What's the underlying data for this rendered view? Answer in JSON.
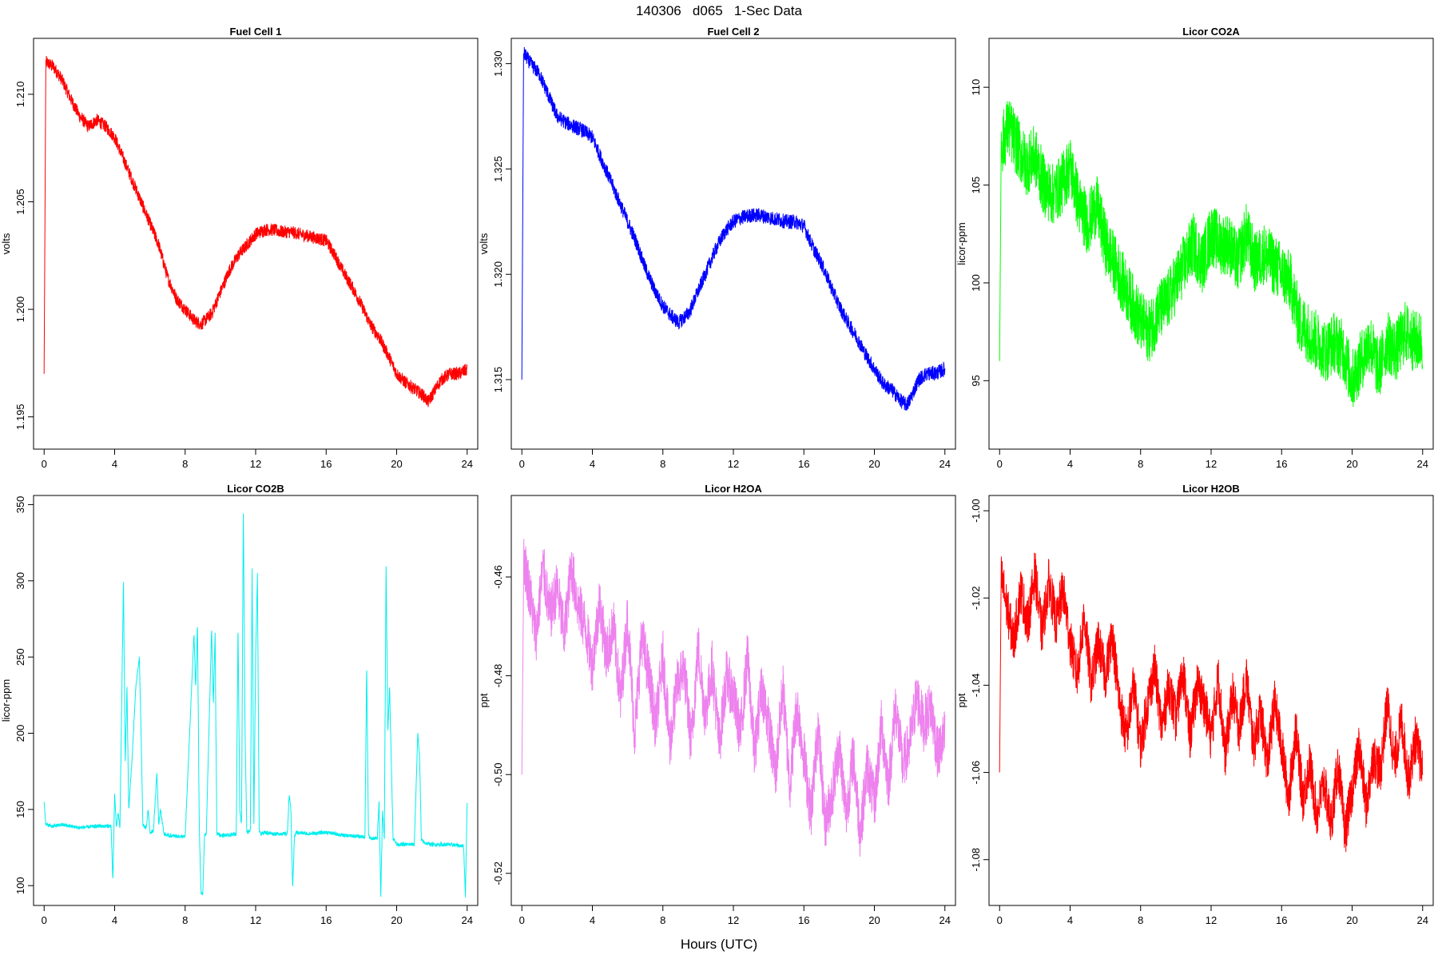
{
  "title": "140306   d065   1-Sec Data",
  "xlabel": "Hours (UTC)",
  "chart_data": [
    {
      "type": "line",
      "title": "Fuel Cell 1",
      "ylabel": "volts",
      "color": "#ff0000",
      "xlim": [
        -0.6,
        24.6
      ],
      "ylim": [
        1.1935,
        1.2126
      ],
      "x_ticks": [
        0,
        4,
        8,
        12,
        16,
        20,
        24
      ],
      "y_ticks": [
        1.195,
        1.2,
        1.205,
        1.21
      ],
      "y_tick_labels": [
        "1.195",
        "1.200",
        "1.205",
        "1.210"
      ],
      "noise": 0.0003,
      "series": [
        {
          "x": [
            0,
            0.1,
            0.5,
            1,
            1.5,
            2,
            2.5,
            3,
            3.5,
            4,
            4.5,
            5,
            5.5,
            6,
            6.5,
            7,
            7.5,
            8,
            8.5,
            8.9,
            9.5,
            10,
            10.5,
            11,
            11.5,
            12,
            12.5,
            13,
            13.5,
            14,
            14.5,
            15,
            15.5,
            16,
            16.5,
            17,
            17.5,
            18,
            18.5,
            19,
            19.5,
            20,
            20.5,
            21,
            21.5,
            21.8,
            22,
            22.5,
            23,
            23.5,
            24
          ],
          "y": [
            1.197,
            1.2115,
            1.2113,
            1.2107,
            1.2098,
            1.209,
            1.2085,
            1.2088,
            1.2085,
            1.208,
            1.207,
            1.206,
            1.205,
            1.204,
            1.203,
            1.2015,
            1.2005,
            1.2,
            1.1995,
            1.1993,
            1.1998,
            1.2008,
            1.2018,
            1.2025,
            1.203,
            1.2035,
            1.2037,
            1.2037,
            1.2036,
            1.2036,
            1.2035,
            1.2034,
            1.2033,
            1.2032,
            1.2025,
            1.2017,
            1.201,
            1.2002,
            1.1993,
            1.1987,
            1.1979,
            1.197,
            1.1966,
            1.1963,
            1.196,
            1.1957,
            1.196,
            1.1967,
            1.197,
            1.197,
            1.1972
          ]
        }
      ]
    },
    {
      "type": "line",
      "title": "Fuel Cell 2",
      "ylabel": "volts",
      "color": "#0000ff",
      "xlim": [
        -0.6,
        24.6
      ],
      "ylim": [
        1.3117,
        1.3312
      ],
      "x_ticks": [
        0,
        4,
        8,
        12,
        16,
        20,
        24
      ],
      "y_ticks": [
        1.315,
        1.32,
        1.325,
        1.33
      ],
      "y_tick_labels": [
        "1.315",
        "1.320",
        "1.325",
        "1.330"
      ],
      "noise": 0.00035,
      "series": [
        {
          "x": [
            0,
            0.1,
            0.5,
            1,
            1.5,
            2,
            2.5,
            3,
            3.5,
            4,
            4.5,
            5,
            5.5,
            6,
            6.5,
            7,
            7.5,
            8,
            8.5,
            8.9,
            9.5,
            10,
            10.5,
            11,
            11.5,
            12,
            12.5,
            13,
            13.5,
            14,
            14.5,
            15,
            15.5,
            16,
            16.5,
            17,
            17.5,
            18,
            18.5,
            19,
            19.5,
            20,
            20.5,
            21,
            21.5,
            21.8,
            22,
            22.5,
            23,
            23.5,
            24
          ],
          "y": [
            1.315,
            1.3305,
            1.33,
            1.3295,
            1.3285,
            1.3275,
            1.3272,
            1.327,
            1.3268,
            1.3265,
            1.3255,
            1.3245,
            1.3235,
            1.3225,
            1.3215,
            1.3203,
            1.3193,
            1.3185,
            1.318,
            1.3177,
            1.3182,
            1.3192,
            1.3202,
            1.3212,
            1.322,
            1.3225,
            1.3227,
            1.3228,
            1.3228,
            1.3227,
            1.3226,
            1.3225,
            1.3225,
            1.3223,
            1.3213,
            1.3205,
            1.3195,
            1.3185,
            1.3177,
            1.317,
            1.3162,
            1.3155,
            1.3148,
            1.3145,
            1.314,
            1.3138,
            1.314,
            1.315,
            1.3153,
            1.3153,
            1.3155
          ]
        }
      ]
    },
    {
      "type": "line",
      "title": "Licor CO2A",
      "ylabel": "licor-ppm",
      "color": "#00ff00",
      "xlim": [
        -0.6,
        24.6
      ],
      "ylim": [
        91.5,
        112.5
      ],
      "x_ticks": [
        0,
        4,
        8,
        12,
        16,
        20,
        24
      ],
      "y_ticks": [
        95,
        100,
        105,
        110
      ],
      "y_tick_labels": [
        "95",
        "100",
        "105",
        "110"
      ],
      "noise": 1.6,
      "series": [
        {
          "x": [
            0,
            0.1,
            0.5,
            1,
            1.5,
            2,
            2.5,
            3,
            3.5,
            4,
            4.5,
            5,
            5.5,
            6,
            6.5,
            7,
            7.5,
            8,
            8.5,
            9,
            9.5,
            10,
            10.5,
            11,
            11.5,
            12,
            12.5,
            13,
            13.5,
            14,
            14.5,
            15,
            15.5,
            16,
            16.5,
            17,
            17.5,
            18,
            18.5,
            19,
            19.5,
            20,
            20.5,
            21,
            21.5,
            22,
            22.5,
            23,
            23.5,
            24
          ],
          "y": [
            96,
            107,
            108,
            107,
            106,
            106.5,
            105,
            104.5,
            105,
            106,
            104,
            103,
            104,
            102,
            101,
            100,
            99,
            98,
            97.5,
            98.5,
            99,
            100,
            101,
            102,
            101,
            102.5,
            102,
            102,
            101,
            102.5,
            101,
            101.5,
            101,
            100.5,
            100,
            98,
            97.5,
            97,
            96.5,
            97,
            96.5,
            95,
            96,
            97,
            95.5,
            97,
            96.5,
            97.5,
            97,
            97
          ]
        }
      ]
    },
    {
      "type": "line",
      "title": "Licor CO2B",
      "ylabel": "licor-ppm",
      "color": "#00eeee",
      "xlim": [
        -0.6,
        24.6
      ],
      "ylim": [
        87,
        356
      ],
      "x_ticks": [
        0,
        4,
        8,
        12,
        16,
        20,
        24
      ],
      "y_ticks": [
        100,
        150,
        200,
        250,
        300,
        350
      ],
      "y_tick_labels": [
        "100",
        "150",
        "200",
        "250",
        "300",
        "350"
      ],
      "noise": 1.2,
      "series": [
        {
          "x": [
            0,
            0.1,
            0.5,
            1,
            2,
            3,
            3.8,
            3.9,
            4.0,
            4.1,
            4.2,
            4.3,
            4.5,
            4.6,
            4.7,
            4.8,
            5.0,
            5.2,
            5.4,
            5.5,
            5.6,
            5.8,
            5.9,
            6.0,
            6.2,
            6.4,
            6.5,
            6.6,
            6.8,
            7,
            8,
            8.5,
            8.6,
            8.7,
            8.8,
            8.9,
            9.0,
            9.1,
            9.2,
            9.5,
            9.6,
            9.7,
            9.8,
            9.9,
            10,
            10.5,
            10.9,
            11.0,
            11.1,
            11.2,
            11.3,
            11.4,
            11.5,
            11.7,
            11.8,
            11.9,
            12.0,
            12.1,
            12.2,
            12.3,
            12.5,
            13,
            13.8,
            13.9,
            14.0,
            14.1,
            14.2,
            14.3,
            15,
            16,
            17,
            18.2,
            18.3,
            18.4,
            18.5,
            18.9,
            19.0,
            19.1,
            19.2,
            19.3,
            19.4,
            19.5,
            19.6,
            19.8,
            19.9,
            20.0,
            20.5,
            21.0,
            21.2,
            21.3,
            21.4,
            21.6,
            22,
            23,
            23.8,
            23.9,
            24.0
          ],
          "y": [
            155,
            140,
            139,
            140,
            138,
            139,
            139,
            102,
            160,
            138,
            148,
            138,
            300,
            180,
            230,
            150,
            185,
            230,
            250,
            200,
            140,
            138,
            150,
            135,
            136,
            175,
            140,
            150,
            134,
            133,
            132,
            265,
            230,
            272,
            140,
            95,
            95,
            133,
            134,
            268,
            220,
            265,
            134,
            134,
            133,
            133,
            134,
            270,
            150,
            140,
            350,
            200,
            135,
            136,
            310,
            140,
            250,
            305,
            137,
            134,
            135,
            134,
            134,
            160,
            150,
            98,
            132,
            135,
            134,
            135,
            133,
            132,
            245,
            133,
            131,
            131,
            155,
            93,
            150,
            130,
            310,
            200,
            230,
            130,
            130,
            127,
            127,
            127,
            200,
            185,
            130,
            128,
            127,
            127,
            126,
            93,
            155
          ]
        }
      ]
    },
    {
      "type": "line",
      "title": "Licor H2OA",
      "ylabel": "ppt",
      "color": "#ee82ee",
      "xlim": [
        -0.6,
        24.6
      ],
      "ylim": [
        -0.5265,
        -0.4435
      ],
      "x_ticks": [
        0,
        4,
        8,
        12,
        16,
        20,
        24
      ],
      "y_ticks": [
        -0.52,
        -0.5,
        -0.48,
        -0.46
      ],
      "y_tick_labels": [
        "-0.52",
        "-0.50",
        "-0.48",
        "-0.46"
      ],
      "noise": 0.0055,
      "series": [
        {
          "x": [
            0,
            0.1,
            0.4,
            0.8,
            1.2,
            1.6,
            2.0,
            2.4,
            2.8,
            3.2,
            3.6,
            4.0,
            4.4,
            4.8,
            5.2,
            5.6,
            6.0,
            6.4,
            6.8,
            7.2,
            7.6,
            8.0,
            8.4,
            8.8,
            9.2,
            9.6,
            10.0,
            10.4,
            10.8,
            11.2,
            11.6,
            12.0,
            12.4,
            12.8,
            13.2,
            13.6,
            14.0,
            14.4,
            14.8,
            15.2,
            15.6,
            16.0,
            16.4,
            16.8,
            17.2,
            17.6,
            18.0,
            18.4,
            18.8,
            19.2,
            19.6,
            20.0,
            20.4,
            20.8,
            21.2,
            21.6,
            22.0,
            22.4,
            22.8,
            23.2,
            23.6,
            24.0
          ],
          "y": [
            -0.5,
            -0.456,
            -0.462,
            -0.472,
            -0.458,
            -0.468,
            -0.462,
            -0.472,
            -0.458,
            -0.466,
            -0.47,
            -0.478,
            -0.465,
            -0.476,
            -0.47,
            -0.485,
            -0.468,
            -0.492,
            -0.472,
            -0.48,
            -0.49,
            -0.476,
            -0.494,
            -0.482,
            -0.478,
            -0.494,
            -0.474,
            -0.488,
            -0.478,
            -0.494,
            -0.48,
            -0.484,
            -0.492,
            -0.476,
            -0.496,
            -0.482,
            -0.49,
            -0.5,
            -0.482,
            -0.502,
            -0.486,
            -0.496,
            -0.508,
            -0.49,
            -0.51,
            -0.504,
            -0.494,
            -0.508,
            -0.496,
            -0.512,
            -0.498,
            -0.506,
            -0.49,
            -0.502,
            -0.486,
            -0.498,
            -0.494,
            -0.484,
            -0.49,
            -0.486,
            -0.496,
            -0.492
          ]
        }
      ]
    },
    {
      "type": "line",
      "title": "Licor H2OB",
      "ylabel": "ppt",
      "color": "#ff0000",
      "xlim": [
        -0.6,
        24.6
      ],
      "ylim": [
        -1.0905,
        -0.9965
      ],
      "x_ticks": [
        0,
        4,
        8,
        12,
        16,
        20,
        24
      ],
      "y_ticks": [
        -1.08,
        -1.06,
        -1.04,
        -1.02,
        -1.0
      ],
      "y_tick_labels": [
        "-1.08",
        "-1.06",
        "-1.04",
        "-1.02",
        "-1.00"
      ],
      "noise": 0.0055,
      "series": [
        {
          "x": [
            0,
            0.1,
            0.4,
            0.8,
            1.2,
            1.6,
            2.0,
            2.4,
            2.8,
            3.2,
            3.6,
            4.0,
            4.4,
            4.8,
            5.2,
            5.6,
            6.0,
            6.4,
            6.8,
            7.2,
            7.6,
            8.0,
            8.4,
            8.8,
            9.2,
            9.6,
            10.0,
            10.4,
            10.8,
            11.2,
            11.6,
            12.0,
            12.4,
            12.8,
            13.2,
            13.6,
            14.0,
            14.4,
            14.8,
            15.2,
            15.6,
            16.0,
            16.4,
            16.8,
            17.2,
            17.6,
            18.0,
            18.4,
            18.8,
            19.2,
            19.6,
            20.0,
            20.4,
            20.8,
            21.2,
            21.6,
            22.0,
            22.4,
            22.8,
            23.2,
            23.6,
            24.0
          ],
          "y": [
            -1.06,
            -1.015,
            -1.022,
            -1.03,
            -1.018,
            -1.026,
            -1.014,
            -1.028,
            -1.016,
            -1.026,
            -1.018,
            -1.03,
            -1.038,
            -1.024,
            -1.04,
            -1.03,
            -1.038,
            -1.028,
            -1.044,
            -1.052,
            -1.04,
            -1.054,
            -1.044,
            -1.036,
            -1.05,
            -1.04,
            -1.048,
            -1.036,
            -1.052,
            -1.04,
            -1.044,
            -1.052,
            -1.038,
            -1.056,
            -1.042,
            -1.05,
            -1.038,
            -1.054,
            -1.046,
            -1.058,
            -1.044,
            -1.054,
            -1.066,
            -1.05,
            -1.066,
            -1.058,
            -1.07,
            -1.062,
            -1.072,
            -1.058,
            -1.074,
            -1.064,
            -1.054,
            -1.068,
            -1.056,
            -1.06,
            -1.044,
            -1.058,
            -1.048,
            -1.062,
            -1.052,
            -1.06
          ]
        }
      ]
    }
  ]
}
